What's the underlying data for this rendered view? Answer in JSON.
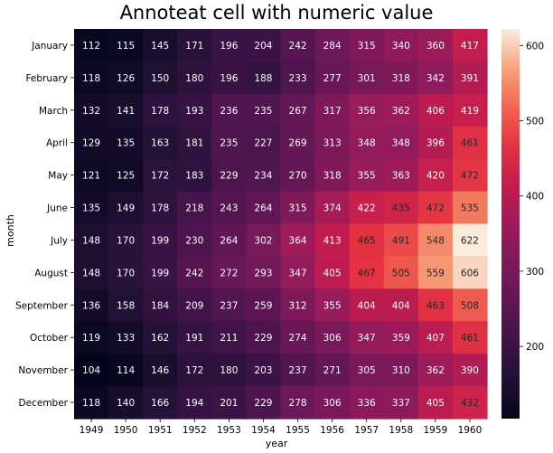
{
  "chart_data": {
    "type": "heatmap",
    "title": "Annoteat cell with numeric value",
    "xlabel": "year",
    "ylabel": "month",
    "x": [
      "1949",
      "1950",
      "1951",
      "1952",
      "1953",
      "1954",
      "1955",
      "1956",
      "1957",
      "1958",
      "1959",
      "1960"
    ],
    "y": [
      "January",
      "February",
      "March",
      "April",
      "May",
      "June",
      "July",
      "August",
      "September",
      "October",
      "November",
      "December"
    ],
    "values": [
      [
        112,
        115,
        145,
        171,
        196,
        204,
        242,
        284,
        315,
        340,
        360,
        417
      ],
      [
        118,
        126,
        150,
        180,
        196,
        188,
        233,
        277,
        301,
        318,
        342,
        391
      ],
      [
        132,
        141,
        178,
        193,
        236,
        235,
        267,
        317,
        356,
        362,
        406,
        419
      ],
      [
        129,
        135,
        163,
        181,
        235,
        227,
        269,
        313,
        348,
        348,
        396,
        461
      ],
      [
        121,
        125,
        172,
        183,
        229,
        234,
        270,
        318,
        355,
        363,
        420,
        472
      ],
      [
        135,
        149,
        178,
        218,
        243,
        264,
        315,
        374,
        422,
        435,
        472,
        535
      ],
      [
        148,
        170,
        199,
        230,
        264,
        302,
        364,
        413,
        465,
        491,
        548,
        622
      ],
      [
        148,
        170,
        199,
        242,
        272,
        293,
        347,
        405,
        467,
        505,
        559,
        606
      ],
      [
        136,
        158,
        184,
        209,
        237,
        259,
        312,
        355,
        404,
        404,
        463,
        508
      ],
      [
        119,
        133,
        162,
        191,
        211,
        229,
        274,
        306,
        347,
        359,
        407,
        461
      ],
      [
        104,
        114,
        146,
        172,
        180,
        203,
        237,
        271,
        305,
        310,
        362,
        390
      ],
      [
        118,
        140,
        166,
        194,
        201,
        229,
        278,
        306,
        336,
        337,
        405,
        432
      ]
    ],
    "colorscale": "rocket",
    "vmin": 104,
    "vmax": 622,
    "colorbar_ticks": [
      200,
      300,
      400,
      500,
      600
    ],
    "annotate": true,
    "grid": false,
    "colorbar_placement": "right"
  }
}
